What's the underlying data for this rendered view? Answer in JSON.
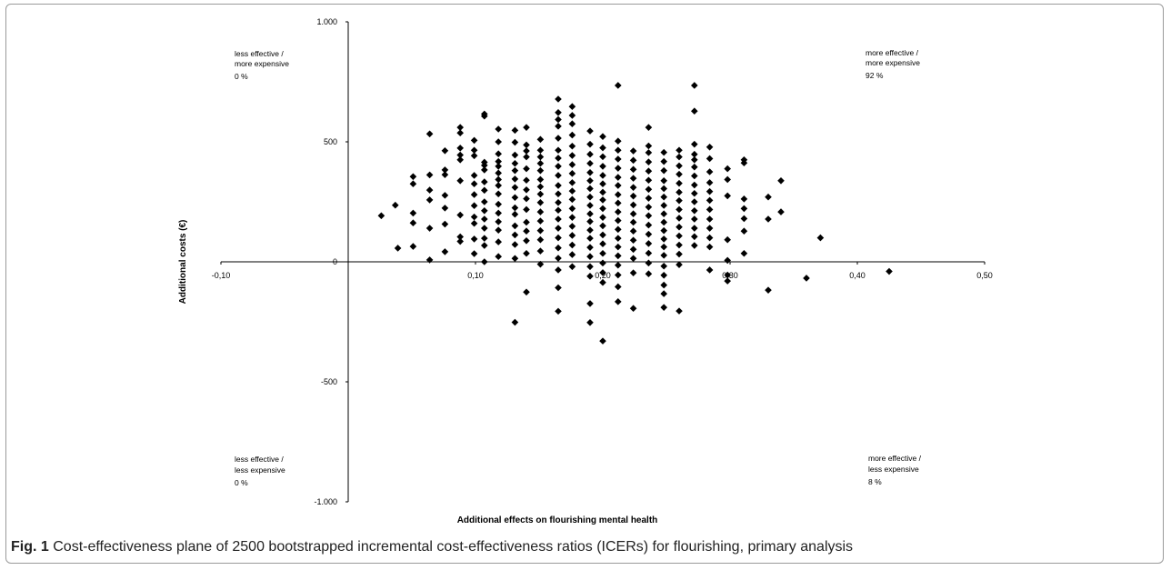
{
  "figure": {
    "label": "Fig. 1",
    "caption": "Cost-effectiveness plane of 2500 bootstrapped incremental cost-effectiveness ratios (ICERs) for flourishing, primary analysis"
  },
  "quadrants": {
    "top_left": [
      "less effective /",
      "more expensive",
      "0 %"
    ],
    "top_right": [
      "more effective /",
      "more expensive",
      "92 %"
    ],
    "bottom_left": [
      "less effective /",
      "less expensive",
      "0 %"
    ],
    "bottom_right": [
      "more effective /",
      "less expensive",
      "8 %"
    ]
  },
  "chart_data": {
    "type": "scatter",
    "xlabel": "Additional effects on flourishing mental health",
    "ylabel": "Additional costs (€)",
    "xlim": [
      -0.1,
      0.5
    ],
    "ylim": [
      -1000,
      1000
    ],
    "x_ticks": [
      {
        "value": -0.1,
        "label": "-0,10"
      },
      {
        "value": 0.1,
        "label": "0,10"
      },
      {
        "value": 0.2,
        "label": "0,20"
      },
      {
        "value": 0.3,
        "label": "0,30"
      },
      {
        "value": 0.4,
        "label": "0,40"
      },
      {
        "value": 0.5,
        "label": "0,50"
      }
    ],
    "y_ticks": [
      {
        "value": 1000,
        "label": "1.000"
      },
      {
        "value": 500,
        "label": "500"
      },
      {
        "value": 0,
        "label": "0"
      },
      {
        "value": -500,
        "label": "-500"
      },
      {
        "value": -1000,
        "label": "-1.000"
      }
    ],
    "marker": "diamond",
    "marker_color": "#000000",
    "points": [
      [
        0.026,
        192
      ],
      [
        0.037,
        236
      ],
      [
        0.039,
        57
      ],
      [
        0.051,
        64
      ],
      [
        0.051,
        162
      ],
      [
        0.051,
        203
      ],
      [
        0.051,
        325
      ],
      [
        0.051,
        355
      ],
      [
        0.064,
        8
      ],
      [
        0.064,
        140
      ],
      [
        0.064,
        258
      ],
      [
        0.064,
        299
      ],
      [
        0.064,
        362
      ],
      [
        0.064,
        533
      ],
      [
        0.076,
        42
      ],
      [
        0.076,
        157
      ],
      [
        0.076,
        224
      ],
      [
        0.076,
        277
      ],
      [
        0.076,
        363
      ],
      [
        0.076,
        383
      ],
      [
        0.076,
        463
      ],
      [
        0.088,
        85
      ],
      [
        0.088,
        104
      ],
      [
        0.088,
        195
      ],
      [
        0.088,
        338
      ],
      [
        0.088,
        425
      ],
      [
        0.088,
        445
      ],
      [
        0.088,
        474
      ],
      [
        0.088,
        537
      ],
      [
        0.088,
        560
      ],
      [
        0.099,
        34
      ],
      [
        0.099,
        95
      ],
      [
        0.099,
        160
      ],
      [
        0.099,
        187
      ],
      [
        0.099,
        234
      ],
      [
        0.099,
        280
      ],
      [
        0.099,
        325
      ],
      [
        0.099,
        360
      ],
      [
        0.099,
        442
      ],
      [
        0.099,
        465
      ],
      [
        0.099,
        506
      ],
      [
        0.107,
        0
      ],
      [
        0.107,
        68
      ],
      [
        0.107,
        98
      ],
      [
        0.107,
        140
      ],
      [
        0.107,
        178
      ],
      [
        0.107,
        213
      ],
      [
        0.107,
        250
      ],
      [
        0.107,
        298
      ],
      [
        0.107,
        333
      ],
      [
        0.107,
        383
      ],
      [
        0.107,
        402
      ],
      [
        0.107,
        415
      ],
      [
        0.107,
        607
      ],
      [
        0.107,
        616
      ],
      [
        0.118,
        22
      ],
      [
        0.118,
        83
      ],
      [
        0.118,
        132
      ],
      [
        0.118,
        167
      ],
      [
        0.118,
        203
      ],
      [
        0.118,
        240
      ],
      [
        0.118,
        283
      ],
      [
        0.118,
        318
      ],
      [
        0.118,
        343
      ],
      [
        0.118,
        370
      ],
      [
        0.118,
        398
      ],
      [
        0.118,
        418
      ],
      [
        0.118,
        450
      ],
      [
        0.118,
        500
      ],
      [
        0.118,
        553
      ],
      [
        0.131,
        -252
      ],
      [
        0.131,
        14
      ],
      [
        0.131,
        72
      ],
      [
        0.131,
        112
      ],
      [
        0.131,
        150
      ],
      [
        0.131,
        198
      ],
      [
        0.131,
        225
      ],
      [
        0.131,
        268
      ],
      [
        0.131,
        310
      ],
      [
        0.131,
        345
      ],
      [
        0.131,
        380
      ],
      [
        0.131,
        410
      ],
      [
        0.131,
        445
      ],
      [
        0.131,
        498
      ],
      [
        0.131,
        548
      ],
      [
        0.14,
        -126
      ],
      [
        0.14,
        35
      ],
      [
        0.14,
        88
      ],
      [
        0.14,
        128
      ],
      [
        0.14,
        165
      ],
      [
        0.14,
        218
      ],
      [
        0.14,
        263
      ],
      [
        0.14,
        300
      ],
      [
        0.14,
        340
      ],
      [
        0.14,
        388
      ],
      [
        0.14,
        437
      ],
      [
        0.14,
        462
      ],
      [
        0.14,
        487
      ],
      [
        0.14,
        560
      ],
      [
        0.151,
        -10
      ],
      [
        0.151,
        45
      ],
      [
        0.151,
        92
      ],
      [
        0.151,
        130
      ],
      [
        0.151,
        170
      ],
      [
        0.151,
        208
      ],
      [
        0.151,
        247
      ],
      [
        0.151,
        282
      ],
      [
        0.151,
        313
      ],
      [
        0.151,
        343
      ],
      [
        0.151,
        380
      ],
      [
        0.151,
        410
      ],
      [
        0.151,
        437
      ],
      [
        0.151,
        465
      ],
      [
        0.151,
        510
      ],
      [
        0.165,
        -206
      ],
      [
        0.165,
        -108
      ],
      [
        0.165,
        -34
      ],
      [
        0.165,
        15
      ],
      [
        0.165,
        58
      ],
      [
        0.165,
        100
      ],
      [
        0.165,
        140
      ],
      [
        0.165,
        178
      ],
      [
        0.165,
        215
      ],
      [
        0.165,
        247
      ],
      [
        0.165,
        283
      ],
      [
        0.165,
        318
      ],
      [
        0.165,
        360
      ],
      [
        0.165,
        398
      ],
      [
        0.165,
        432
      ],
      [
        0.165,
        465
      ],
      [
        0.165,
        515
      ],
      [
        0.165,
        565
      ],
      [
        0.165,
        593
      ],
      [
        0.165,
        622
      ],
      [
        0.165,
        678
      ],
      [
        0.176,
        -20
      ],
      [
        0.176,
        30
      ],
      [
        0.176,
        70
      ],
      [
        0.176,
        110
      ],
      [
        0.176,
        148
      ],
      [
        0.176,
        185
      ],
      [
        0.176,
        222
      ],
      [
        0.176,
        260
      ],
      [
        0.176,
        295
      ],
      [
        0.176,
        330
      ],
      [
        0.176,
        368
      ],
      [
        0.176,
        405
      ],
      [
        0.176,
        443
      ],
      [
        0.176,
        482
      ],
      [
        0.176,
        528
      ],
      [
        0.176,
        575
      ],
      [
        0.176,
        610
      ],
      [
        0.176,
        647
      ],
      [
        0.19,
        -253
      ],
      [
        0.19,
        -174
      ],
      [
        0.19,
        -60
      ],
      [
        0.19,
        -20
      ],
      [
        0.19,
        22
      ],
      [
        0.19,
        60
      ],
      [
        0.19,
        98
      ],
      [
        0.19,
        132
      ],
      [
        0.19,
        168
      ],
      [
        0.19,
        200
      ],
      [
        0.19,
        235
      ],
      [
        0.19,
        270
      ],
      [
        0.19,
        305
      ],
      [
        0.19,
        338
      ],
      [
        0.19,
        372
      ],
      [
        0.19,
        410
      ],
      [
        0.19,
        448
      ],
      [
        0.19,
        490
      ],
      [
        0.19,
        545
      ],
      [
        0.2,
        -330
      ],
      [
        0.2,
        -86
      ],
      [
        0.2,
        -45
      ],
      [
        0.2,
        -5
      ],
      [
        0.2,
        35
      ],
      [
        0.2,
        75
      ],
      [
        0.2,
        112
      ],
      [
        0.2,
        150
      ],
      [
        0.2,
        185
      ],
      [
        0.2,
        222
      ],
      [
        0.2,
        258
      ],
      [
        0.2,
        290
      ],
      [
        0.2,
        325
      ],
      [
        0.2,
        360
      ],
      [
        0.2,
        398
      ],
      [
        0.2,
        438
      ],
      [
        0.2,
        475
      ],
      [
        0.2,
        522
      ],
      [
        0.212,
        -166
      ],
      [
        0.212,
        -104
      ],
      [
        0.212,
        -55
      ],
      [
        0.212,
        -14
      ],
      [
        0.212,
        25
      ],
      [
        0.212,
        62
      ],
      [
        0.212,
        98
      ],
      [
        0.212,
        135
      ],
      [
        0.212,
        172
      ],
      [
        0.212,
        208
      ],
      [
        0.212,
        245
      ],
      [
        0.212,
        280
      ],
      [
        0.212,
        318
      ],
      [
        0.212,
        352
      ],
      [
        0.212,
        390
      ],
      [
        0.212,
        428
      ],
      [
        0.212,
        465
      ],
      [
        0.212,
        503
      ],
      [
        0.212,
        735
      ],
      [
        0.224,
        -194
      ],
      [
        0.224,
        -46
      ],
      [
        0.224,
        14
      ],
      [
        0.224,
        52
      ],
      [
        0.224,
        90
      ],
      [
        0.224,
        128
      ],
      [
        0.224,
        165
      ],
      [
        0.224,
        200
      ],
      [
        0.224,
        237
      ],
      [
        0.224,
        274
      ],
      [
        0.224,
        310
      ],
      [
        0.224,
        348
      ],
      [
        0.224,
        385
      ],
      [
        0.224,
        423
      ],
      [
        0.224,
        462
      ],
      [
        0.236,
        -50
      ],
      [
        0.236,
        -5
      ],
      [
        0.236,
        36
      ],
      [
        0.236,
        76
      ],
      [
        0.236,
        115
      ],
      [
        0.236,
        153
      ],
      [
        0.236,
        192
      ],
      [
        0.236,
        228
      ],
      [
        0.236,
        265
      ],
      [
        0.236,
        302
      ],
      [
        0.236,
        340
      ],
      [
        0.236,
        378
      ],
      [
        0.236,
        416
      ],
      [
        0.236,
        455
      ],
      [
        0.236,
        483
      ],
      [
        0.236,
        560
      ],
      [
        0.248,
        -190
      ],
      [
        0.248,
        -133
      ],
      [
        0.248,
        -97
      ],
      [
        0.248,
        -56
      ],
      [
        0.248,
        -18
      ],
      [
        0.248,
        27
      ],
      [
        0.248,
        62
      ],
      [
        0.248,
        95
      ],
      [
        0.248,
        130
      ],
      [
        0.248,
        165
      ],
      [
        0.248,
        200
      ],
      [
        0.248,
        235
      ],
      [
        0.248,
        270
      ],
      [
        0.248,
        305
      ],
      [
        0.248,
        338
      ],
      [
        0.248,
        380
      ],
      [
        0.248,
        418
      ],
      [
        0.248,
        456
      ],
      [
        0.26,
        -205
      ],
      [
        0.26,
        -12
      ],
      [
        0.26,
        32
      ],
      [
        0.26,
        70
      ],
      [
        0.26,
        108
      ],
      [
        0.26,
        145
      ],
      [
        0.26,
        182
      ],
      [
        0.26,
        218
      ],
      [
        0.26,
        255
      ],
      [
        0.26,
        290
      ],
      [
        0.26,
        327
      ],
      [
        0.26,
        365
      ],
      [
        0.26,
        400
      ],
      [
        0.26,
        437
      ],
      [
        0.26,
        465
      ],
      [
        0.272,
        68
      ],
      [
        0.272,
        105
      ],
      [
        0.272,
        140
      ],
      [
        0.272,
        178
      ],
      [
        0.272,
        213
      ],
      [
        0.272,
        250
      ],
      [
        0.272,
        285
      ],
      [
        0.272,
        320
      ],
      [
        0.272,
        358
      ],
      [
        0.272,
        395
      ],
      [
        0.272,
        425
      ],
      [
        0.272,
        448
      ],
      [
        0.272,
        490
      ],
      [
        0.272,
        628
      ],
      [
        0.272,
        735
      ],
      [
        0.284,
        -34
      ],
      [
        0.284,
        62
      ],
      [
        0.284,
        100
      ],
      [
        0.284,
        140
      ],
      [
        0.284,
        178
      ],
      [
        0.284,
        218
      ],
      [
        0.284,
        256
      ],
      [
        0.284,
        293
      ],
      [
        0.284,
        330
      ],
      [
        0.284,
        375
      ],
      [
        0.284,
        430
      ],
      [
        0.284,
        478
      ],
      [
        0.298,
        -80
      ],
      [
        0.298,
        -55
      ],
      [
        0.298,
        6
      ],
      [
        0.298,
        92
      ],
      [
        0.298,
        275
      ],
      [
        0.298,
        343
      ],
      [
        0.298,
        388
      ],
      [
        0.311,
        35
      ],
      [
        0.311,
        128
      ],
      [
        0.311,
        180
      ],
      [
        0.311,
        222
      ],
      [
        0.311,
        262
      ],
      [
        0.311,
        412
      ],
      [
        0.311,
        425
      ],
      [
        0.33,
        -118
      ],
      [
        0.33,
        178
      ],
      [
        0.33,
        270
      ],
      [
        0.34,
        208
      ],
      [
        0.34,
        338
      ],
      [
        0.36,
        -68
      ],
      [
        0.371,
        100
      ],
      [
        0.425,
        -40
      ]
    ]
  }
}
